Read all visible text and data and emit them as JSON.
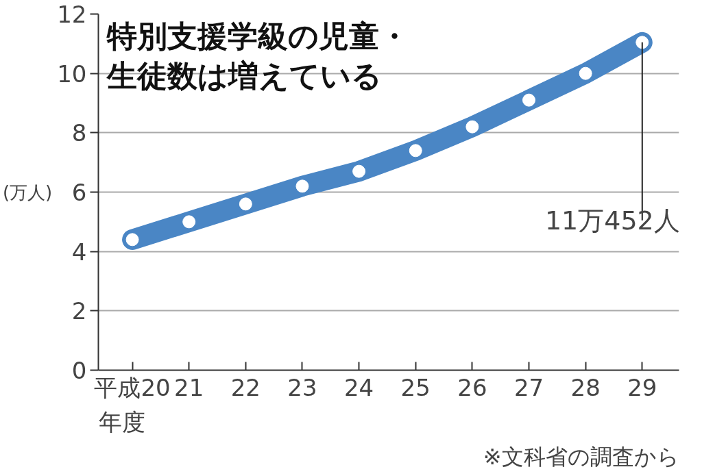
{
  "chart_data": {
    "type": "line",
    "title": "特別支援学級の児童・生徒数は増えている",
    "ylabel": "(万人)",
    "xlabel": "年度",
    "categories": [
      "平成20",
      "21",
      "22",
      "23",
      "24",
      "25",
      "26",
      "27",
      "28",
      "29"
    ],
    "series": [
      {
        "color": "#4a86c5",
        "values": [
          4.4,
          5.0,
          5.6,
          6.2,
          6.7,
          7.4,
          8.2,
          9.1,
          10.0,
          11.0452
        ]
      }
    ],
    "ylim": [
      0,
      12
    ],
    "yticks": [
      0,
      2,
      4,
      6,
      8,
      10,
      12
    ],
    "grid": "y",
    "marker": "circle",
    "annotations": [
      {
        "text": "11万452人",
        "x": "29",
        "y": 11.0452
      },
      "※文科省の調査から"
    ]
  }
}
